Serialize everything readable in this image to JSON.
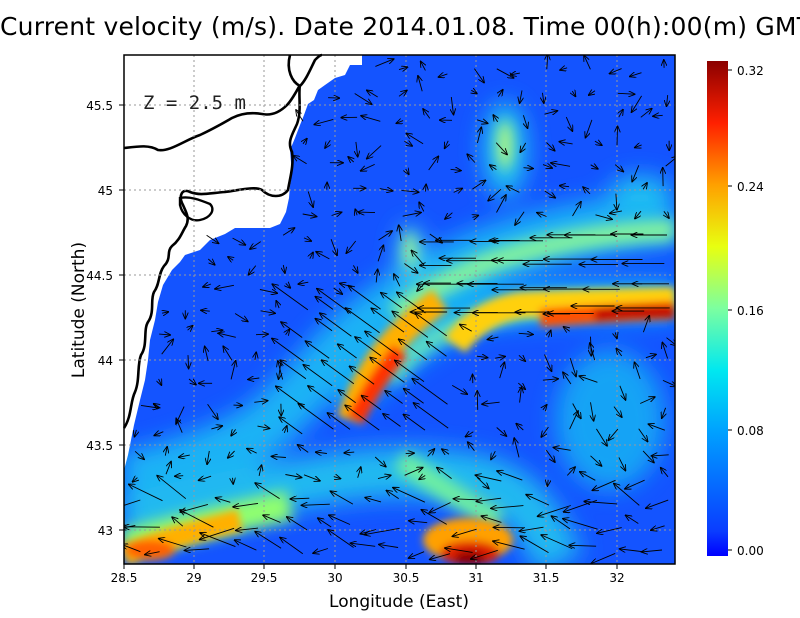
{
  "title": "Current velocity (m/s). Date 2014.01.08. Time 00(h):00(m) GMT",
  "depth_label": "Z = 2.5 m",
  "x_axis": {
    "label": "Longitude (East)",
    "ticks": [
      "28.5",
      "29",
      "29.5",
      "30",
      "30.5",
      "31",
      "31.5",
      "32"
    ],
    "range": [
      28.5,
      32.4
    ]
  },
  "y_axis": {
    "label": "Latitude (North)",
    "ticks": [
      "43",
      "43.5",
      "44",
      "44.5",
      "45",
      "45.5"
    ],
    "range": [
      42.8,
      45.8
    ]
  },
  "colorbar": {
    "ticks": [
      "0.32",
      "0.24",
      "0.16",
      "0.08",
      "0.00"
    ],
    "range": [
      0,
      0.32
    ],
    "colormap": "jet"
  },
  "colors": {
    "land": "#ffffff",
    "coastline": "#000000",
    "grid": "#9a9a9a"
  }
}
